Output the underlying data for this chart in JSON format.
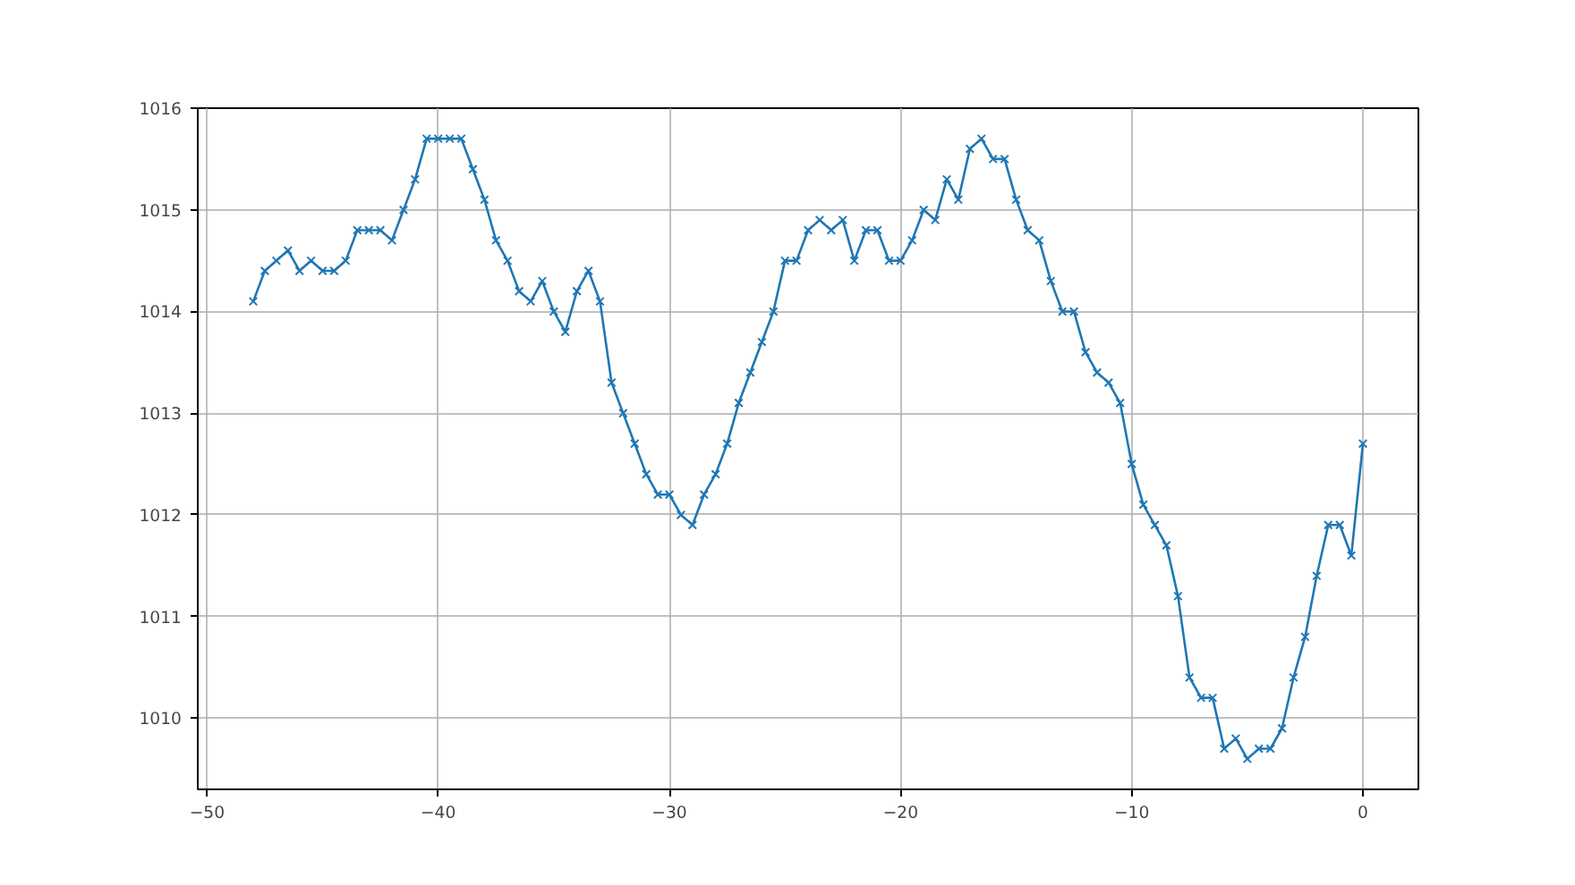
{
  "chart_data": {
    "type": "line",
    "marker": "cross",
    "grid": true,
    "x": [
      -48,
      -47.5,
      -47,
      -46.5,
      -46,
      -45.5,
      -45,
      -44.5,
      -44,
      -43.5,
      -43,
      -42.5,
      -42,
      -41.5,
      -41,
      -40.5,
      -40,
      -39.5,
      -39,
      -38.5,
      -38,
      -37.5,
      -37,
      -36.5,
      -36,
      -35.5,
      -35,
      -34.5,
      -34,
      -33.5,
      -33,
      -32.5,
      -32,
      -31.5,
      -31,
      -30.5,
      -30,
      -29.5,
      -29,
      -28.5,
      -28,
      -27.5,
      -27,
      -26.5,
      -26,
      -25.5,
      -25,
      -24.5,
      -24,
      -23.5,
      -23,
      -22.5,
      -22,
      -21.5,
      -21,
      -20.5,
      -20,
      -19.5,
      -19,
      -18.5,
      -18,
      -17.5,
      -17,
      -16.5,
      -16,
      -15.5,
      -15,
      -14.5,
      -14,
      -13.5,
      -13,
      -12.5,
      -12,
      -11.5,
      -11,
      -10.5,
      -10,
      -9.5,
      -9,
      -8.5,
      -8,
      -7.5,
      -7,
      -6.5,
      -6,
      -5.5,
      -5,
      -4.5,
      -4,
      -3.5,
      -3,
      -2.5,
      -2,
      -1.5,
      -1,
      -0.5,
      0
    ],
    "series": [
      {
        "color": "#1f77b4",
        "values": [
          1014.1,
          1014.4,
          1014.5,
          1014.6,
          1014.4,
          1014.5,
          1014.4,
          1014.4,
          1014.5,
          1014.8,
          1014.8,
          1014.8,
          1014.7,
          1015.0,
          1015.3,
          1015.7,
          1015.7,
          1015.7,
          1015.7,
          1015.4,
          1015.1,
          1014.7,
          1014.5,
          1014.2,
          1014.1,
          1014.3,
          1014.0,
          1013.8,
          1014.2,
          1014.4,
          1014.1,
          1013.3,
          1013.0,
          1012.7,
          1012.4,
          1012.2,
          1012.2,
          1012.0,
          1011.9,
          1012.2,
          1012.4,
          1012.7,
          1013.1,
          1013.4,
          1013.7,
          1014.0,
          1014.5,
          1014.5,
          1014.8,
          1014.9,
          1014.8,
          1014.9,
          1014.5,
          1014.8,
          1014.8,
          1014.5,
          1014.5,
          1014.7,
          1015.0,
          1014.9,
          1015.3,
          1015.1,
          1015.6,
          1015.7,
          1015.5,
          1015.5,
          1015.1,
          1014.8,
          1014.7,
          1014.3,
          1014.0,
          1014.0,
          1013.6,
          1013.4,
          1013.3,
          1013.1,
          1012.5,
          1012.1,
          1011.9,
          1011.7,
          1011.2,
          1010.4,
          1010.2,
          1010.2,
          1009.7,
          1009.8,
          1009.6,
          1009.7,
          1009.7,
          1009.9,
          1010.4,
          1010.8,
          1011.4,
          1011.9,
          1011.9,
          1011.6,
          1012.7
        ]
      }
    ],
    "xlim": [
      -50.4,
      2.4
    ],
    "ylim": [
      1009.3,
      1016
    ],
    "xticks": [
      {
        "value": -50,
        "label": "−50"
      },
      {
        "value": -40,
        "label": "−40"
      },
      {
        "value": -30,
        "label": "−30"
      },
      {
        "value": -20,
        "label": "−20"
      },
      {
        "value": -10,
        "label": "−10"
      },
      0
    ],
    "yticks": [
      1010,
      1011,
      1012,
      1013,
      1014,
      1015,
      1016
    ]
  }
}
